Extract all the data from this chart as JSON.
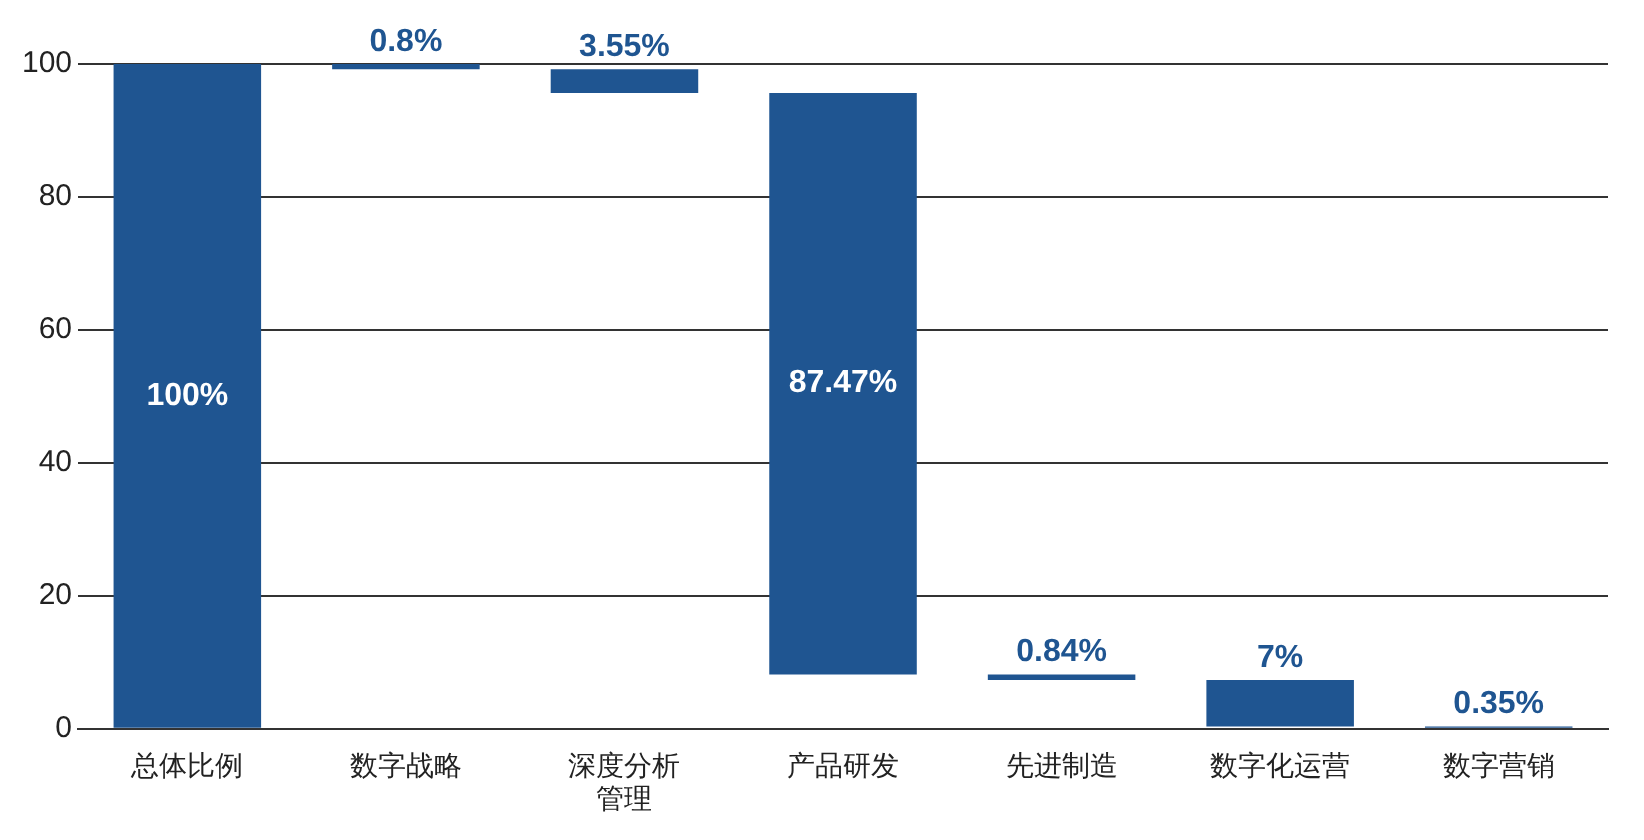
{
  "chart_data": {
    "type": "bar",
    "categories": [
      "总体比例",
      "数字战略",
      "深度分析管理",
      "产品研发",
      "先进制造",
      "数字化运营",
      "数字营销"
    ],
    "values": [
      100,
      0.8,
      3.55,
      87.47,
      0.84,
      7,
      0.35
    ],
    "base": [
      0,
      99.2,
      95.65,
      8.18,
      7.34,
      0.34,
      0
    ],
    "value_labels": [
      "100%",
      "0.8%",
      "3.55%",
      "87.47%",
      "0.84%",
      "7%",
      "0.35%"
    ],
    "color": "#1f5591",
    "ylim": [
      0,
      100
    ],
    "yticks": [
      0,
      20,
      40,
      60,
      80,
      100
    ],
    "grid": "y",
    "legend": false
  }
}
